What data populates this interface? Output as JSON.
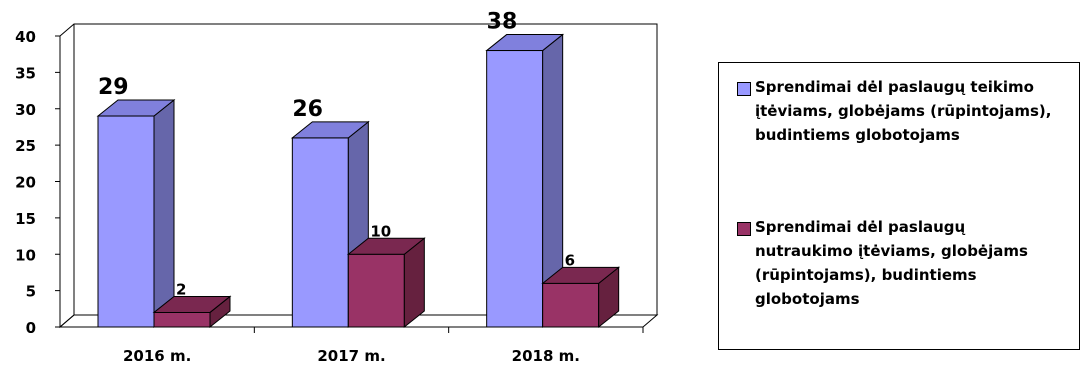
{
  "chart_data": {
    "type": "bar",
    "categories": [
      "2016 m.",
      "2017 m.",
      "2018 m."
    ],
    "series": [
      {
        "name": "Sprendimai dėl paslaugų teikimo įtėviams, globėjams (rūpintojams), budintiems globotojams",
        "values": [
          29,
          26,
          38
        ],
        "color": "#9999ff"
      },
      {
        "name": "Sprendimai dėl paslaugų nutraukimo įtėviams, globėjams (rūpintojams), budintiems globotojams",
        "values": [
          2,
          10,
          6
        ],
        "color": "#993366"
      }
    ],
    "ylim": [
      0,
      40
    ],
    "yticks": [
      0,
      5,
      10,
      15,
      20,
      25,
      30,
      35,
      40
    ],
    "title": "",
    "xlabel": "",
    "ylabel": "",
    "grid": false,
    "style": "3d-clustered-column",
    "legend_position": "right"
  },
  "legend": {
    "item1": "Sprendimai dėl paslaugų teikimo įtėviams, globėjams (rūpintojams), budintiems globotojams",
    "item2": "Sprendimai dėl paslaugų nutraukimo įtėviams, globėjams (rūpintojams), budintiems globotojams"
  }
}
